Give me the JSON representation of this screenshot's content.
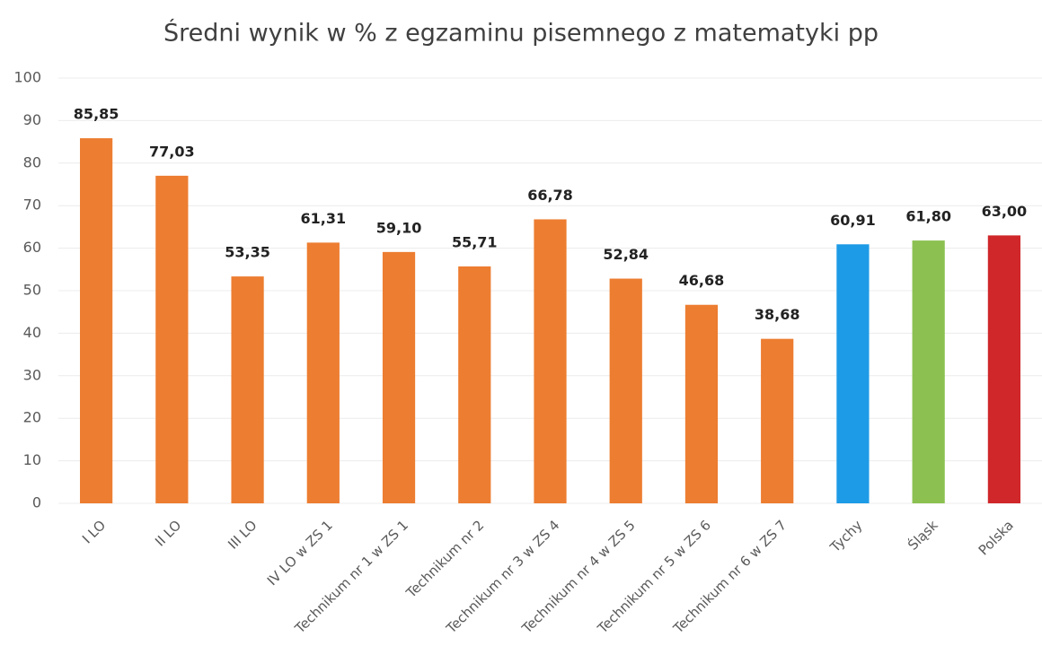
{
  "chart_data": {
    "type": "bar",
    "title": "Średni wynik w %  z egzaminu pisemnego z  matematyki pp",
    "categories": [
      "I LO",
      "II LO",
      "III LO",
      "IV LO w ZS 1",
      "Technikum nr 1 w ZS 1",
      "Technikum nr 2",
      "Technikum nr 3 w ZS 4",
      "Technikum nr 4 w ZS 5",
      "Technikum nr 5 w ZS 6",
      "Technikum nr 6 w ZS 7",
      "Tychy",
      "Śląsk",
      "Polska"
    ],
    "values": [
      85.85,
      77.03,
      53.35,
      61.31,
      59.1,
      55.71,
      66.78,
      52.84,
      46.68,
      38.68,
      60.91,
      61.8,
      63.0
    ],
    "value_labels": [
      "85,85",
      "77,03",
      "53,35",
      "61,31",
      "59,10",
      "55,71",
      "66,78",
      "52,84",
      "46,68",
      "38,68",
      "60,91",
      "61,80",
      "63,00"
    ],
    "colors": [
      "#ed7d31",
      "#ed7d31",
      "#ed7d31",
      "#ed7d31",
      "#ed7d31",
      "#ed7d31",
      "#ed7d31",
      "#ed7d31",
      "#ed7d31",
      "#ed7d31",
      "#1e9be6",
      "#8cc152",
      "#d0272a"
    ],
    "ylim": [
      0,
      100
    ],
    "yticks": [
      0,
      10,
      20,
      30,
      40,
      50,
      60,
      70,
      80,
      90,
      100
    ],
    "grid": true
  }
}
